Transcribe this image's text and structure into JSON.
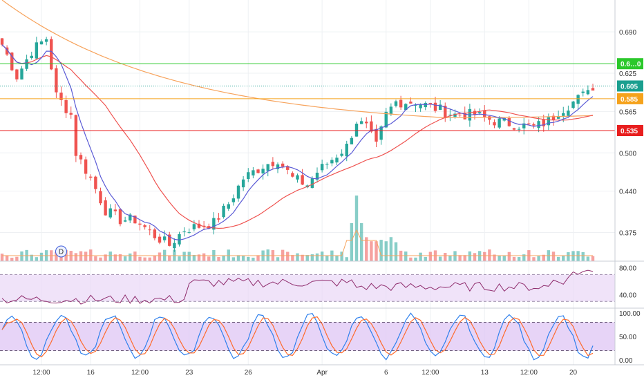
{
  "chart_data": {
    "type": "candlestick",
    "main_pane": {
      "y_ticks": [
        "0.690",
        "0.625",
        "0.565",
        "0.500",
        "0.440",
        "0.375"
      ],
      "y_range": [
        0.33,
        0.74
      ],
      "price_lines": [
        {
          "value": 0.64,
          "label": "0.6…0",
          "color": "#2bc82b"
        },
        {
          "value": 0.605,
          "label": "0.605",
          "color": "#1a9f8f",
          "dotted": true
        },
        {
          "value": 0.585,
          "label": "0.585",
          "color": "#f5a21b"
        },
        {
          "value": 0.535,
          "label": "0.535",
          "color": "#e81e1e"
        }
      ],
      "event_marker": "D"
    },
    "x_ticks": [
      {
        "label": "12:00",
        "i": 8
      },
      {
        "label": "16",
        "i": 18
      },
      {
        "label": "12:00",
        "i": 28
      },
      {
        "label": "23",
        "i": 38
      },
      {
        "label": "26",
        "i": 50
      },
      {
        "label": "Apr",
        "i": 65
      },
      {
        "label": "6",
        "i": 78
      },
      {
        "label": "12:00",
        "i": 87
      },
      {
        "label": "13",
        "i": 98
      },
      {
        "label": "12:00",
        "i": 107
      },
      {
        "label": "20",
        "i": 116
      }
    ],
    "rsi": {
      "y_ticks": [
        "80.00",
        "40.00"
      ],
      "upper": 70,
      "lower": 30
    },
    "stoch": {
      "y_ticks": [
        "100.00",
        "50.00",
        "0.00"
      ],
      "upper": 80,
      "lower": 20
    },
    "colors": {
      "up": "#26a69a",
      "down": "#ef5350",
      "ma_fast": "#5b5bd6",
      "ma_mid": "#ef5350",
      "ma_slow": "#f7a35c",
      "rsi_line": "#8e2b6c",
      "rsi_band": "#e9d7f7",
      "stoch_k": "#2f80ed",
      "stoch_d": "#ff6a2b",
      "stoch_band": "#e1c9f5"
    }
  }
}
